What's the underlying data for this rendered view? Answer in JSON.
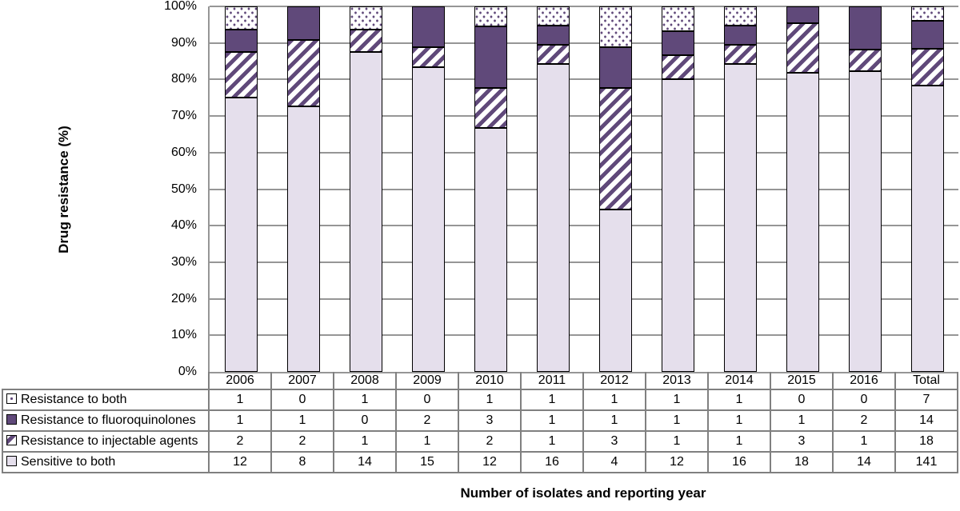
{
  "figure": {
    "y_axis_title": "Drug resistance (%)",
    "x_axis_title": "Number of isolates and reporting year",
    "y_ticks": [
      "100%",
      "90%",
      "80%",
      "70%",
      "60%",
      "50%",
      "40%",
      "30%",
      "20%",
      "10%",
      "0%"
    ]
  },
  "chart_data": {
    "type": "bar",
    "subtype": "100-percent-stacked-column-with-data-table",
    "title": "",
    "xlabel": "Number of isolates and reporting year",
    "ylabel": "Drug resistance (%)",
    "ylim": [
      0,
      100
    ],
    "y_tick_labels": [
      "0%",
      "10%",
      "20%",
      "30%",
      "40%",
      "50%",
      "60%",
      "70%",
      "80%",
      "90%",
      "100%"
    ],
    "grid": true,
    "legend_position": "table-left",
    "categories": [
      "2006",
      "2007",
      "2008",
      "2009",
      "2010",
      "2011",
      "2012",
      "2013",
      "2014",
      "2015",
      "2016",
      "Total"
    ],
    "series": [
      {
        "name": "Resistance to both",
        "pattern": "dots",
        "values": [
          1,
          0,
          1,
          0,
          1,
          1,
          1,
          1,
          1,
          0,
          0,
          7
        ]
      },
      {
        "name": "Resistance to fluoroquinolones",
        "pattern": "solid",
        "values": [
          1,
          1,
          0,
          2,
          3,
          1,
          1,
          1,
          1,
          1,
          2,
          14
        ]
      },
      {
        "name": "Resistance to injectable agents",
        "pattern": "stripes",
        "values": [
          2,
          2,
          1,
          1,
          2,
          1,
          3,
          1,
          1,
          3,
          1,
          18
        ]
      },
      {
        "name": "Sensitive to both",
        "pattern": "light",
        "values": [
          12,
          8,
          14,
          15,
          12,
          16,
          4,
          12,
          16,
          18,
          14,
          141
        ]
      }
    ],
    "stacking_note": "Each column is scaled to 100%; segment height = value / column total. Stack order bottom-to-top: Sensitive to both, injectable agents, fluoroquinolones, both.",
    "colors": {
      "solid_purple": "#60497A",
      "light_lavender": "#E5DFEC",
      "pattern_background": "#FFFFFF",
      "bar_border": "#000000",
      "gridline": "#969696",
      "table_border": "#808080"
    }
  }
}
